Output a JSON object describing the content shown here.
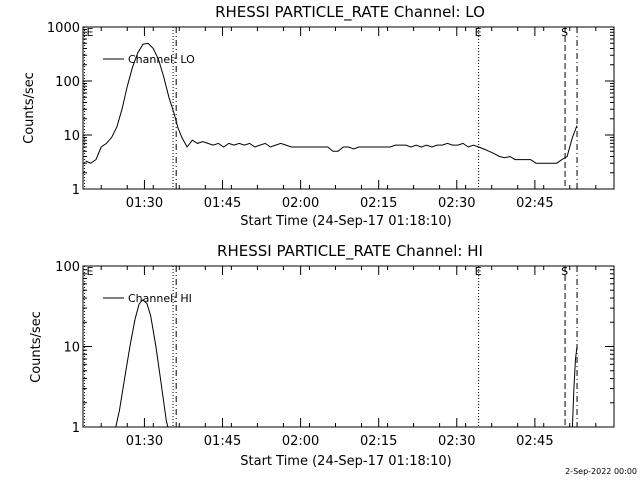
{
  "footer": {
    "date": "2-Sep-2022 00:00"
  },
  "chart_data": [
    {
      "type": "line",
      "title": "RHESSI PARTICLE_RATE Channel: LO",
      "xlabel": "Start Time (24-Sep-17 01:18:10)",
      "ylabel": "Counts/sec",
      "y_scale": "log",
      "ylim": [
        1,
        1000
      ],
      "y_ticks": [
        "1",
        "10",
        "100",
        "1000"
      ],
      "x_unit": "minutes after 01:18:10",
      "xlim": [
        0,
        102
      ],
      "x_ticks": [
        {
          "label": "01:30",
          "value": 11.8
        },
        {
          "label": "01:45",
          "value": 26.8
        },
        {
          "label": "02:00",
          "value": 41.8
        },
        {
          "label": "02:15",
          "value": 56.8
        },
        {
          "label": "02:30",
          "value": 71.8
        },
        {
          "label": "02:45",
          "value": 86.8
        }
      ],
      "legend": {
        "label": "Channel: LO",
        "position": "top-left"
      },
      "markers": [
        {
          "label": "E",
          "x": 0.3,
          "style": "dotted"
        },
        {
          "label": "",
          "x": 17.3,
          "style": "dotted"
        },
        {
          "label": "",
          "x": 17.9,
          "style": "dash-dot"
        },
        {
          "label": "E",
          "x": 76.0,
          "style": "dotted"
        },
        {
          "label": "S",
          "x": 92.6,
          "style": "dashed"
        },
        {
          "label": "",
          "x": 94.9,
          "style": "dash-dot"
        }
      ],
      "series": [
        {
          "name": "Channel: LO",
          "x": [
            0.5,
            1.5,
            2.5,
            3.5,
            4.5,
            5.5,
            6.5,
            7.5,
            8.5,
            9.5,
            10.5,
            11.5,
            12.5,
            13.5,
            14.5,
            15.5,
            16.5,
            17.5,
            18.2,
            19,
            20,
            21,
            22,
            23,
            24,
            25,
            26,
            27,
            28,
            29,
            30,
            31,
            32,
            33,
            34,
            35,
            36,
            37,
            38,
            39,
            40,
            41,
            42,
            43,
            44,
            45,
            46,
            47,
            48,
            49,
            50,
            51,
            52,
            53,
            54,
            55,
            56,
            57,
            58,
            59,
            60,
            61,
            62,
            63,
            64,
            65,
            66,
            67,
            68,
            69,
            70,
            71,
            72,
            73,
            74,
            75,
            76,
            77,
            78,
            79,
            80,
            81,
            82,
            83,
            84,
            85,
            86,
            87,
            88,
            89,
            90,
            91,
            92,
            93,
            94,
            94.9
          ],
          "y": [
            3.3,
            3,
            3.5,
            6,
            7,
            9,
            14,
            30,
            80,
            180,
            330,
            480,
            500,
            400,
            250,
            120,
            50,
            25,
            14,
            9,
            6,
            8,
            7,
            7.5,
            7,
            6.5,
            7,
            6,
            7,
            6.5,
            7,
            6.5,
            7,
            6,
            6.5,
            7,
            6,
            6.5,
            7,
            6.5,
            6,
            6,
            6,
            6,
            6,
            6,
            6,
            6,
            5,
            5,
            6,
            6,
            5.5,
            6,
            6,
            6,
            6,
            6,
            6,
            6,
            6.5,
            6.5,
            6.5,
            6,
            6.5,
            6,
            6.5,
            6,
            6.5,
            6.5,
            7,
            6.5,
            6.5,
            7,
            6,
            6.5,
            6,
            5.5,
            5,
            4.5,
            4,
            3.8,
            4,
            3.5,
            3.5,
            3.5,
            3.5,
            3,
            3,
            3,
            3,
            3,
            3.5,
            4,
            9,
            15
          ]
        }
      ]
    },
    {
      "type": "line",
      "title": "RHESSI PARTICLE_RATE Channel: HI",
      "xlabel": "Start Time (24-Sep-17 01:18:10)",
      "ylabel": "Counts/sec",
      "y_scale": "log",
      "ylim": [
        1,
        100
      ],
      "y_ticks": [
        "1",
        "10",
        "100"
      ],
      "x_unit": "minutes after 01:18:10",
      "xlim": [
        0,
        102
      ],
      "x_ticks": [
        {
          "label": "01:30",
          "value": 11.8
        },
        {
          "label": "01:45",
          "value": 26.8
        },
        {
          "label": "02:00",
          "value": 41.8
        },
        {
          "label": "02:15",
          "value": 56.8
        },
        {
          "label": "02:30",
          "value": 71.8
        },
        {
          "label": "02:45",
          "value": 86.8
        }
      ],
      "legend": {
        "label": "Channel: HI",
        "position": "top-left"
      },
      "markers": [
        {
          "label": "E",
          "x": 0.3,
          "style": "dotted"
        },
        {
          "label": "",
          "x": 17.3,
          "style": "dotted"
        },
        {
          "label": "",
          "x": 17.9,
          "style": "dash-dot"
        },
        {
          "label": "E",
          "x": 76.0,
          "style": "dotted"
        },
        {
          "label": "S",
          "x": 92.6,
          "style": "dashed"
        },
        {
          "label": "",
          "x": 94.9,
          "style": "dash-dot"
        }
      ],
      "series": [
        {
          "name": "Channel: HI",
          "x": [
            6.3,
            7,
            8,
            9,
            10,
            10.8,
            11.5,
            12.3,
            13,
            14,
            15,
            16,
            16.3
          ],
          "y": [
            1,
            1.6,
            4,
            10,
            22,
            34,
            38,
            34,
            24,
            10,
            3.5,
            1.2,
            1
          ],
          "x2": [
            94,
            94.3,
            94.6,
            94.9
          ],
          "y2": [
            1,
            3,
            7,
            10
          ]
        }
      ]
    }
  ]
}
